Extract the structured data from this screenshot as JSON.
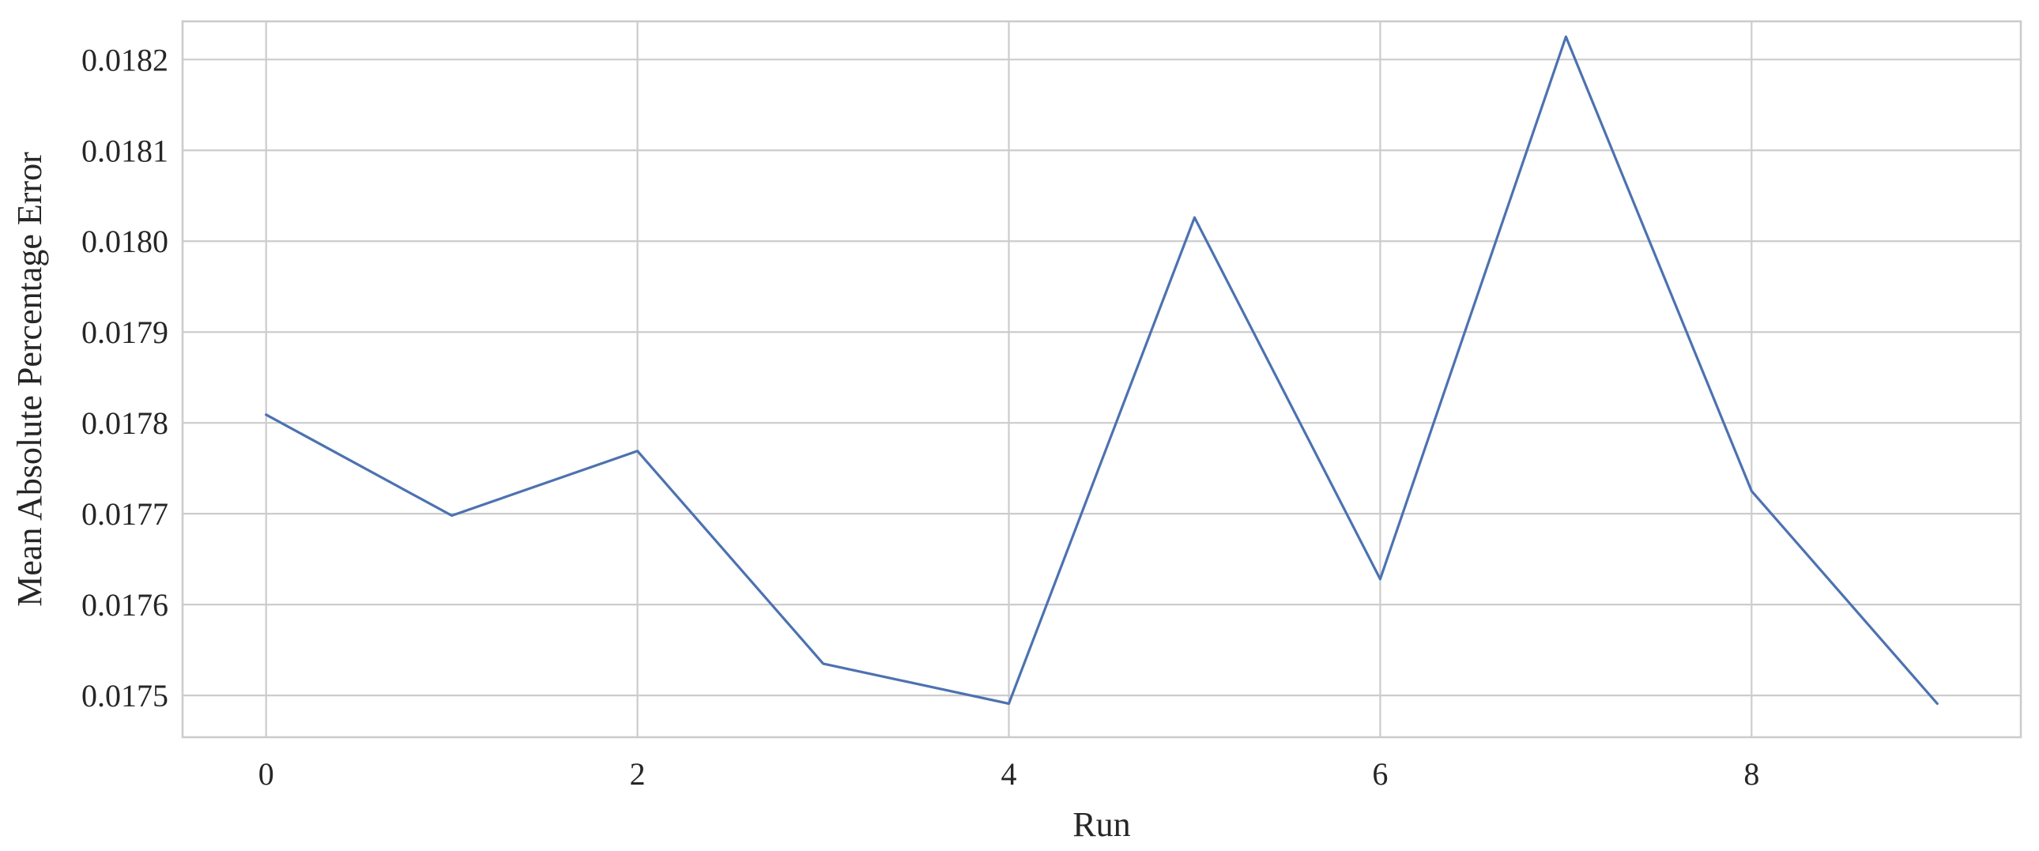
{
  "chart_data": {
    "type": "line",
    "title": "",
    "xlabel": "Run",
    "ylabel": "Mean Absolute Percentage Error",
    "x": [
      0,
      1,
      2,
      3,
      4,
      5,
      6,
      7,
      8,
      9
    ],
    "series": [
      {
        "values": [
          0.017809,
          0.017698,
          0.017769,
          0.017535,
          0.017491,
          0.018026,
          0.017628,
          0.018225,
          0.017725,
          0.017491
        ]
      }
    ],
    "xlim": [
      -0.45,
      9.45
    ],
    "ylim": [
      0.017454,
      0.018242
    ],
    "xticks": [
      0,
      2,
      4,
      6,
      8
    ],
    "xtick_labels": [
      "0",
      "2",
      "4",
      "6",
      "8"
    ],
    "yticks": [
      0.0175,
      0.0176,
      0.0177,
      0.0178,
      0.0179,
      0.018,
      0.0181,
      0.0182
    ],
    "ytick_labels": [
      "0.0175",
      "0.0176",
      "0.0177",
      "0.0178",
      "0.0179",
      "0.0180",
      "0.0181",
      "0.0182"
    ],
    "grid": true,
    "legend": "none",
    "colors": {
      "line": "#4c72b0",
      "grid": "#cccccc",
      "text": "#262626",
      "background": "#ffffff"
    }
  }
}
